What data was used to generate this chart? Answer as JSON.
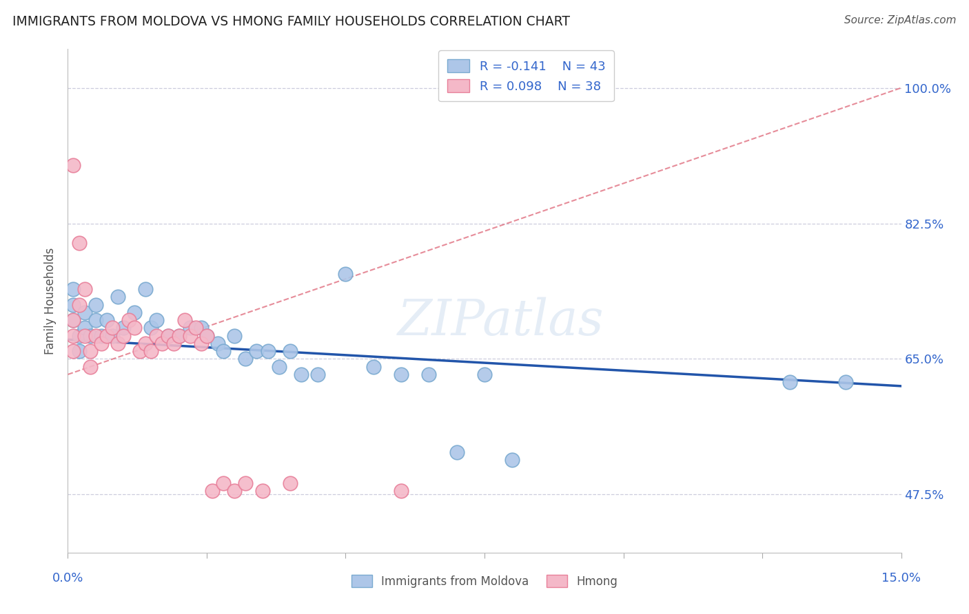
{
  "title": "IMMIGRANTS FROM MOLDOVA VS HMONG FAMILY HOUSEHOLDS CORRELATION CHART",
  "source": "Source: ZipAtlas.com",
  "ylabel_label": "Family Households",
  "xlim": [
    0.0,
    0.15
  ],
  "ylim": [
    0.4,
    1.05
  ],
  "ytick_labels": [
    "47.5%",
    "65.0%",
    "82.5%",
    "100.0%"
  ],
  "ytick_positions": [
    0.475,
    0.65,
    0.825,
    1.0
  ],
  "legend_r1": "R = -0.141",
  "legend_n1": "N = 43",
  "legend_r2": "R = 0.098",
  "legend_n2": "N = 38",
  "blue_color": "#adc6e8",
  "blue_edge": "#7aaad0",
  "pink_color": "#f4b8c8",
  "pink_edge": "#e8809a",
  "trendline_blue_color": "#2255aa",
  "trendline_pink_color": "#e07080",
  "title_color": "#222222",
  "source_color": "#555555",
  "axis_label_color": "#3366cc",
  "moldova_x": [
    0.001,
    0.001,
    0.001,
    0.002,
    0.002,
    0.003,
    0.003,
    0.004,
    0.005,
    0.005,
    0.006,
    0.007,
    0.008,
    0.009,
    0.01,
    0.012,
    0.014,
    0.015,
    0.016,
    0.018,
    0.02,
    0.022,
    0.024,
    0.025,
    0.027,
    0.028,
    0.03,
    0.032,
    0.034,
    0.036,
    0.038,
    0.04,
    0.042,
    0.045,
    0.05,
    0.055,
    0.06,
    0.065,
    0.07,
    0.075,
    0.08,
    0.13,
    0.14
  ],
  "moldova_y": [
    0.7,
    0.72,
    0.74,
    0.68,
    0.66,
    0.69,
    0.71,
    0.68,
    0.7,
    0.72,
    0.68,
    0.7,
    0.68,
    0.73,
    0.69,
    0.71,
    0.74,
    0.69,
    0.7,
    0.68,
    0.68,
    0.69,
    0.69,
    0.68,
    0.67,
    0.66,
    0.68,
    0.65,
    0.66,
    0.66,
    0.64,
    0.66,
    0.63,
    0.63,
    0.76,
    0.64,
    0.63,
    0.63,
    0.53,
    0.63,
    0.52,
    0.62,
    0.62
  ],
  "hmong_x": [
    0.001,
    0.001,
    0.001,
    0.001,
    0.002,
    0.002,
    0.003,
    0.003,
    0.004,
    0.004,
    0.005,
    0.006,
    0.007,
    0.008,
    0.009,
    0.01,
    0.011,
    0.012,
    0.013,
    0.014,
    0.015,
    0.016,
    0.017,
    0.018,
    0.019,
    0.02,
    0.021,
    0.022,
    0.023,
    0.024,
    0.025,
    0.026,
    0.028,
    0.03,
    0.032,
    0.035,
    0.04,
    0.06
  ],
  "hmong_y": [
    0.9,
    0.7,
    0.68,
    0.66,
    0.72,
    0.8,
    0.74,
    0.68,
    0.66,
    0.64,
    0.68,
    0.67,
    0.68,
    0.69,
    0.67,
    0.68,
    0.7,
    0.69,
    0.66,
    0.67,
    0.66,
    0.68,
    0.67,
    0.68,
    0.67,
    0.68,
    0.7,
    0.68,
    0.69,
    0.67,
    0.68,
    0.48,
    0.49,
    0.48,
    0.49,
    0.48,
    0.49,
    0.48
  ],
  "mol_trend_x": [
    0.0,
    0.15
  ],
  "mol_trend_y": [
    0.675,
    0.615
  ],
  "hm_trend_x": [
    0.0,
    0.15
  ],
  "hm_trend_y": [
    0.63,
    1.0
  ]
}
